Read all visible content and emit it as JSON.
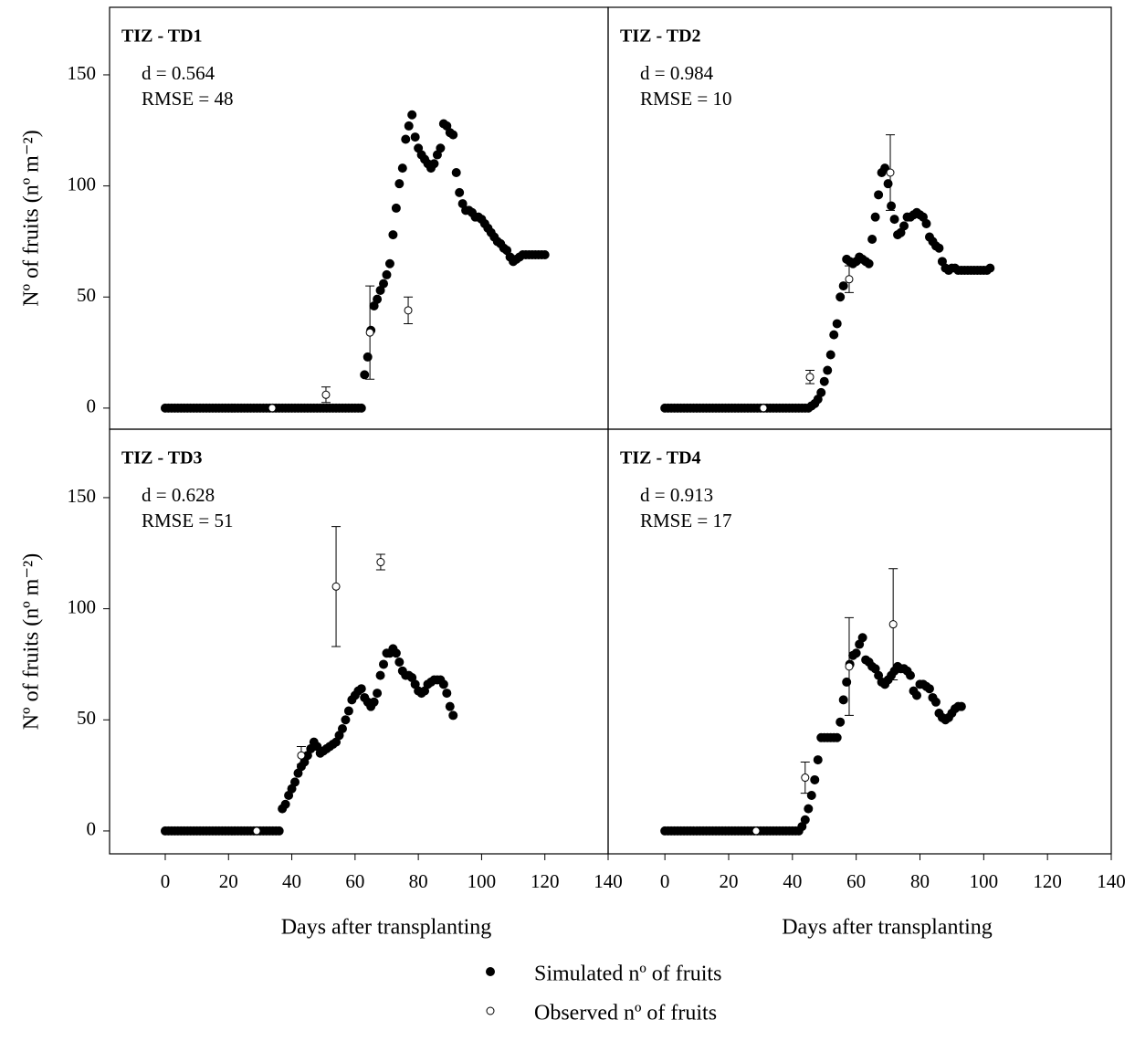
{
  "chart_data": [
    {
      "type": "scatter",
      "title": "TIZ - TD1",
      "annotations": [
        "d = 0.564",
        "RMSE = 48"
      ],
      "ylabel": "Nº of fruits (nº m⁻²)",
      "xlim": [
        -17.6,
        140
      ],
      "ylim": [
        -9.5,
        180.4
      ],
      "yticks": [
        0,
        50,
        100,
        150
      ],
      "series": [
        {
          "name": "Simulated nº of fruits",
          "color": "#000000",
          "marker": "filled",
          "x": [
            0,
            1,
            2,
            3,
            4,
            5,
            6,
            7,
            8,
            9,
            10,
            11,
            12,
            13,
            14,
            15,
            16,
            17,
            18,
            19,
            20,
            21,
            22,
            23,
            24,
            25,
            26,
            27,
            28,
            29,
            30,
            31,
            32,
            33,
            34,
            35,
            36,
            37,
            38,
            39,
            40,
            41,
            42,
            43,
            44,
            45,
            46,
            47,
            48,
            49,
            50,
            51,
            52,
            53,
            54,
            55,
            56,
            57,
            58,
            59,
            60,
            61,
            62,
            63,
            64,
            65,
            66,
            67,
            68,
            69,
            70,
            71,
            72,
            73,
            74,
            75,
            76,
            77,
            78,
            79,
            80,
            81,
            82,
            83,
            84,
            85,
            86,
            87,
            88,
            89,
            90,
            91,
            92,
            93,
            94,
            95,
            96,
            97,
            98,
            99,
            100,
            101,
            102,
            103,
            104,
            105,
            106,
            107,
            108,
            109,
            110,
            111,
            112,
            113,
            114,
            115,
            116,
            117,
            118,
            119,
            120
          ],
          "values": [
            0,
            0,
            0,
            0,
            0,
            0,
            0,
            0,
            0,
            0,
            0,
            0,
            0,
            0,
            0,
            0,
            0,
            0,
            0,
            0,
            0,
            0,
            0,
            0,
            0,
            0,
            0,
            0,
            0,
            0,
            0,
            0,
            0,
            0,
            0,
            0,
            0,
            0,
            0,
            0,
            0,
            0,
            0,
            0,
            0,
            0,
            0,
            0,
            0,
            0,
            0,
            0,
            0,
            0,
            0,
            0,
            0,
            0,
            0,
            0,
            0,
            0,
            0,
            15,
            23,
            35,
            46,
            49,
            53,
            56,
            60,
            65,
            78,
            90,
            101,
            108,
            121,
            127,
            132,
            122,
            117,
            114,
            112,
            110,
            108,
            110,
            114,
            117,
            128,
            127,
            124,
            123,
            106,
            97,
            92,
            89,
            89,
            88,
            86,
            86,
            85,
            83,
            81,
            79,
            77,
            75,
            74,
            72,
            71,
            68,
            66,
            67,
            68,
            69,
            69,
            69,
            69,
            69,
            69,
            69,
            69
          ]
        },
        {
          "name": "Observed nº of fruits",
          "color": "#000000",
          "marker": "open",
          "x": [
            33.8,
            50.8,
            64.7,
            76.8
          ],
          "values": [
            0,
            6,
            34,
            44
          ],
          "errors": [
            null,
            3.5,
            21,
            6
          ]
        }
      ]
    },
    {
      "type": "scatter",
      "title": "TIZ - TD2",
      "annotations": [
        "d = 0.984",
        "RMSE = 10"
      ],
      "xlim": [
        -17.8,
        140
      ],
      "ylim": [
        -9.5,
        180.4
      ],
      "series": [
        {
          "color": "#000000",
          "marker": "filled",
          "x": [
            0,
            1,
            2,
            3,
            4,
            5,
            6,
            7,
            8,
            9,
            10,
            11,
            12,
            13,
            14,
            15,
            16,
            17,
            18,
            19,
            20,
            21,
            22,
            23,
            24,
            25,
            26,
            27,
            28,
            29,
            30,
            31,
            32,
            33,
            34,
            35,
            36,
            37,
            38,
            39,
            40,
            41,
            42,
            43,
            44,
            45,
            46,
            47,
            48,
            49,
            50,
            51,
            52,
            53,
            54,
            55,
            56,
            57,
            58,
            59,
            60,
            61,
            62,
            63,
            64,
            65,
            66,
            67,
            68,
            69,
            70,
            71,
            72,
            73,
            74,
            75,
            76,
            77,
            78,
            79,
            80,
            81,
            82,
            83,
            84,
            85,
            86,
            87,
            88,
            89,
            90,
            91,
            92,
            93,
            94,
            95,
            96,
            97,
            98,
            99,
            100,
            101,
            102
          ],
          "values": [
            0,
            0,
            0,
            0,
            0,
            0,
            0,
            0,
            0,
            0,
            0,
            0,
            0,
            0,
            0,
            0,
            0,
            0,
            0,
            0,
            0,
            0,
            0,
            0,
            0,
            0,
            0,
            0,
            0,
            0,
            0,
            0,
            0,
            0,
            0,
            0,
            0,
            0,
            0,
            0,
            0,
            0,
            0,
            0,
            0,
            0,
            1,
            2,
            4,
            7,
            12,
            17,
            24,
            33,
            38,
            50,
            55,
            67,
            66,
            65,
            66,
            68,
            67,
            66,
            65,
            76,
            86,
            96,
            106,
            108,
            101,
            91,
            85,
            78,
            79,
            82,
            86,
            86,
            87,
            88,
            87,
            86,
            83,
            77,
            75,
            73,
            72,
            66,
            63,
            62,
            63,
            63,
            62,
            62,
            62,
            62,
            62,
            62,
            62,
            62,
            62,
            62,
            63
          ]
        },
        {
          "color": "#000000",
          "marker": "open",
          "x": [
            30.9,
            45.5,
            57.8,
            70.7
          ],
          "values": [
            0,
            14,
            58,
            106
          ],
          "errors": [
            null,
            3,
            6,
            17
          ]
        }
      ]
    },
    {
      "type": "scatter",
      "title": "TIZ - TD3",
      "annotations": [
        "d = 0.628",
        "RMSE = 51"
      ],
      "ylabel": "Nº of fruits (nº m⁻²)",
      "xlabel": "Days after transplanting",
      "xlim": [
        -17.6,
        140
      ],
      "ylim": [
        -10.3,
        180.8
      ],
      "yticks": [
        0,
        50,
        100,
        150
      ],
      "xticks": [
        0,
        20,
        40,
        60,
        80,
        100,
        120,
        140
      ],
      "series": [
        {
          "color": "#000000",
          "marker": "filled",
          "x": [
            0,
            1,
            2,
            3,
            4,
            5,
            6,
            7,
            8,
            9,
            10,
            11,
            12,
            13,
            14,
            15,
            16,
            17,
            18,
            19,
            20,
            21,
            22,
            23,
            24,
            25,
            26,
            27,
            28,
            29,
            30,
            31,
            32,
            33,
            34,
            35,
            36,
            37,
            38,
            39,
            40,
            41,
            42,
            43,
            44,
            45,
            46,
            47,
            48,
            49,
            50,
            51,
            52,
            53,
            54,
            55,
            56,
            57,
            58,
            59,
            60,
            61,
            62,
            63,
            64,
            65,
            66,
            67,
            68,
            69,
            70,
            71,
            72,
            73,
            74,
            75,
            76,
            77,
            78,
            79,
            80,
            81,
            82,
            83,
            84,
            85,
            86,
            87,
            88,
            89,
            90,
            91
          ],
          "values": [
            0,
            0,
            0,
            0,
            0,
            0,
            0,
            0,
            0,
            0,
            0,
            0,
            0,
            0,
            0,
            0,
            0,
            0,
            0,
            0,
            0,
            0,
            0,
            0,
            0,
            0,
            0,
            0,
            0,
            0,
            0,
            0,
            0,
            0,
            0,
            0,
            0,
            10,
            12,
            16,
            19,
            22,
            26,
            29,
            31,
            34,
            37,
            40,
            38,
            35,
            36,
            37,
            38,
            39,
            40,
            43,
            46,
            50,
            54,
            59,
            61,
            63,
            64,
            60,
            58,
            56,
            58,
            62,
            70,
            75,
            80,
            80,
            82,
            80,
            76,
            72,
            70,
            70,
            69,
            66,
            63,
            62,
            63,
            66,
            67,
            68,
            68,
            68,
            66,
            62,
            56,
            52
          ]
        },
        {
          "color": "#000000",
          "marker": "open",
          "x": [
            28.9,
            43,
            54,
            68.1
          ],
          "values": [
            0,
            34,
            110,
            121
          ],
          "errors": [
            null,
            4,
            27,
            3.5
          ]
        }
      ]
    },
    {
      "type": "scatter",
      "title": "TIZ - TD4",
      "annotations": [
        "d = 0.913",
        "RMSE = 17"
      ],
      "xlabel": "Days after transplanting",
      "xlim": [
        -17.8,
        140
      ],
      "ylim": [
        -10.3,
        180.8
      ],
      "xticks": [
        0,
        20,
        40,
        60,
        80,
        100,
        120,
        140
      ],
      "series": [
        {
          "color": "#000000",
          "marker": "filled",
          "x": [
            0,
            1,
            2,
            3,
            4,
            5,
            6,
            7,
            8,
            9,
            10,
            11,
            12,
            13,
            14,
            15,
            16,
            17,
            18,
            19,
            20,
            21,
            22,
            23,
            24,
            25,
            26,
            27,
            28,
            29,
            30,
            31,
            32,
            33,
            34,
            35,
            36,
            37,
            38,
            39,
            40,
            41,
            42,
            43,
            44,
            45,
            46,
            47,
            48,
            49,
            50,
            51,
            52,
            53,
            54,
            55,
            56,
            57,
            58,
            59,
            60,
            61,
            62,
            63,
            64,
            65,
            66,
            67,
            68,
            69,
            70,
            71,
            72,
            73,
            74,
            75,
            76,
            77,
            78,
            79,
            80,
            81,
            82,
            83,
            84,
            85,
            86,
            87,
            88,
            89,
            90,
            91,
            92,
            93
          ],
          "values": [
            0,
            0,
            0,
            0,
            0,
            0,
            0,
            0,
            0,
            0,
            0,
            0,
            0,
            0,
            0,
            0,
            0,
            0,
            0,
            0,
            0,
            0,
            0,
            0,
            0,
            0,
            0,
            0,
            0,
            0,
            0,
            0,
            0,
            0,
            0,
            0,
            0,
            0,
            0,
            0,
            0,
            0,
            0,
            2,
            5,
            10,
            16,
            23,
            32,
            42,
            42,
            42,
            42,
            42,
            42,
            49,
            59,
            67,
            75,
            79,
            80,
            84,
            87,
            77,
            76,
            74,
            73,
            70,
            67,
            66,
            68,
            70,
            72,
            74,
            73,
            73,
            72,
            70,
            63,
            61,
            66,
            66,
            65,
            64,
            60,
            58,
            53,
            51,
            50,
            51,
            53,
            55,
            56,
            56
          ]
        },
        {
          "color": "#000000",
          "marker": "open",
          "x": [
            28.6,
            44,
            57.8,
            71.6
          ],
          "values": [
            0,
            24,
            74,
            93
          ],
          "errors": [
            null,
            7,
            22,
            25
          ]
        }
      ]
    }
  ]
}
